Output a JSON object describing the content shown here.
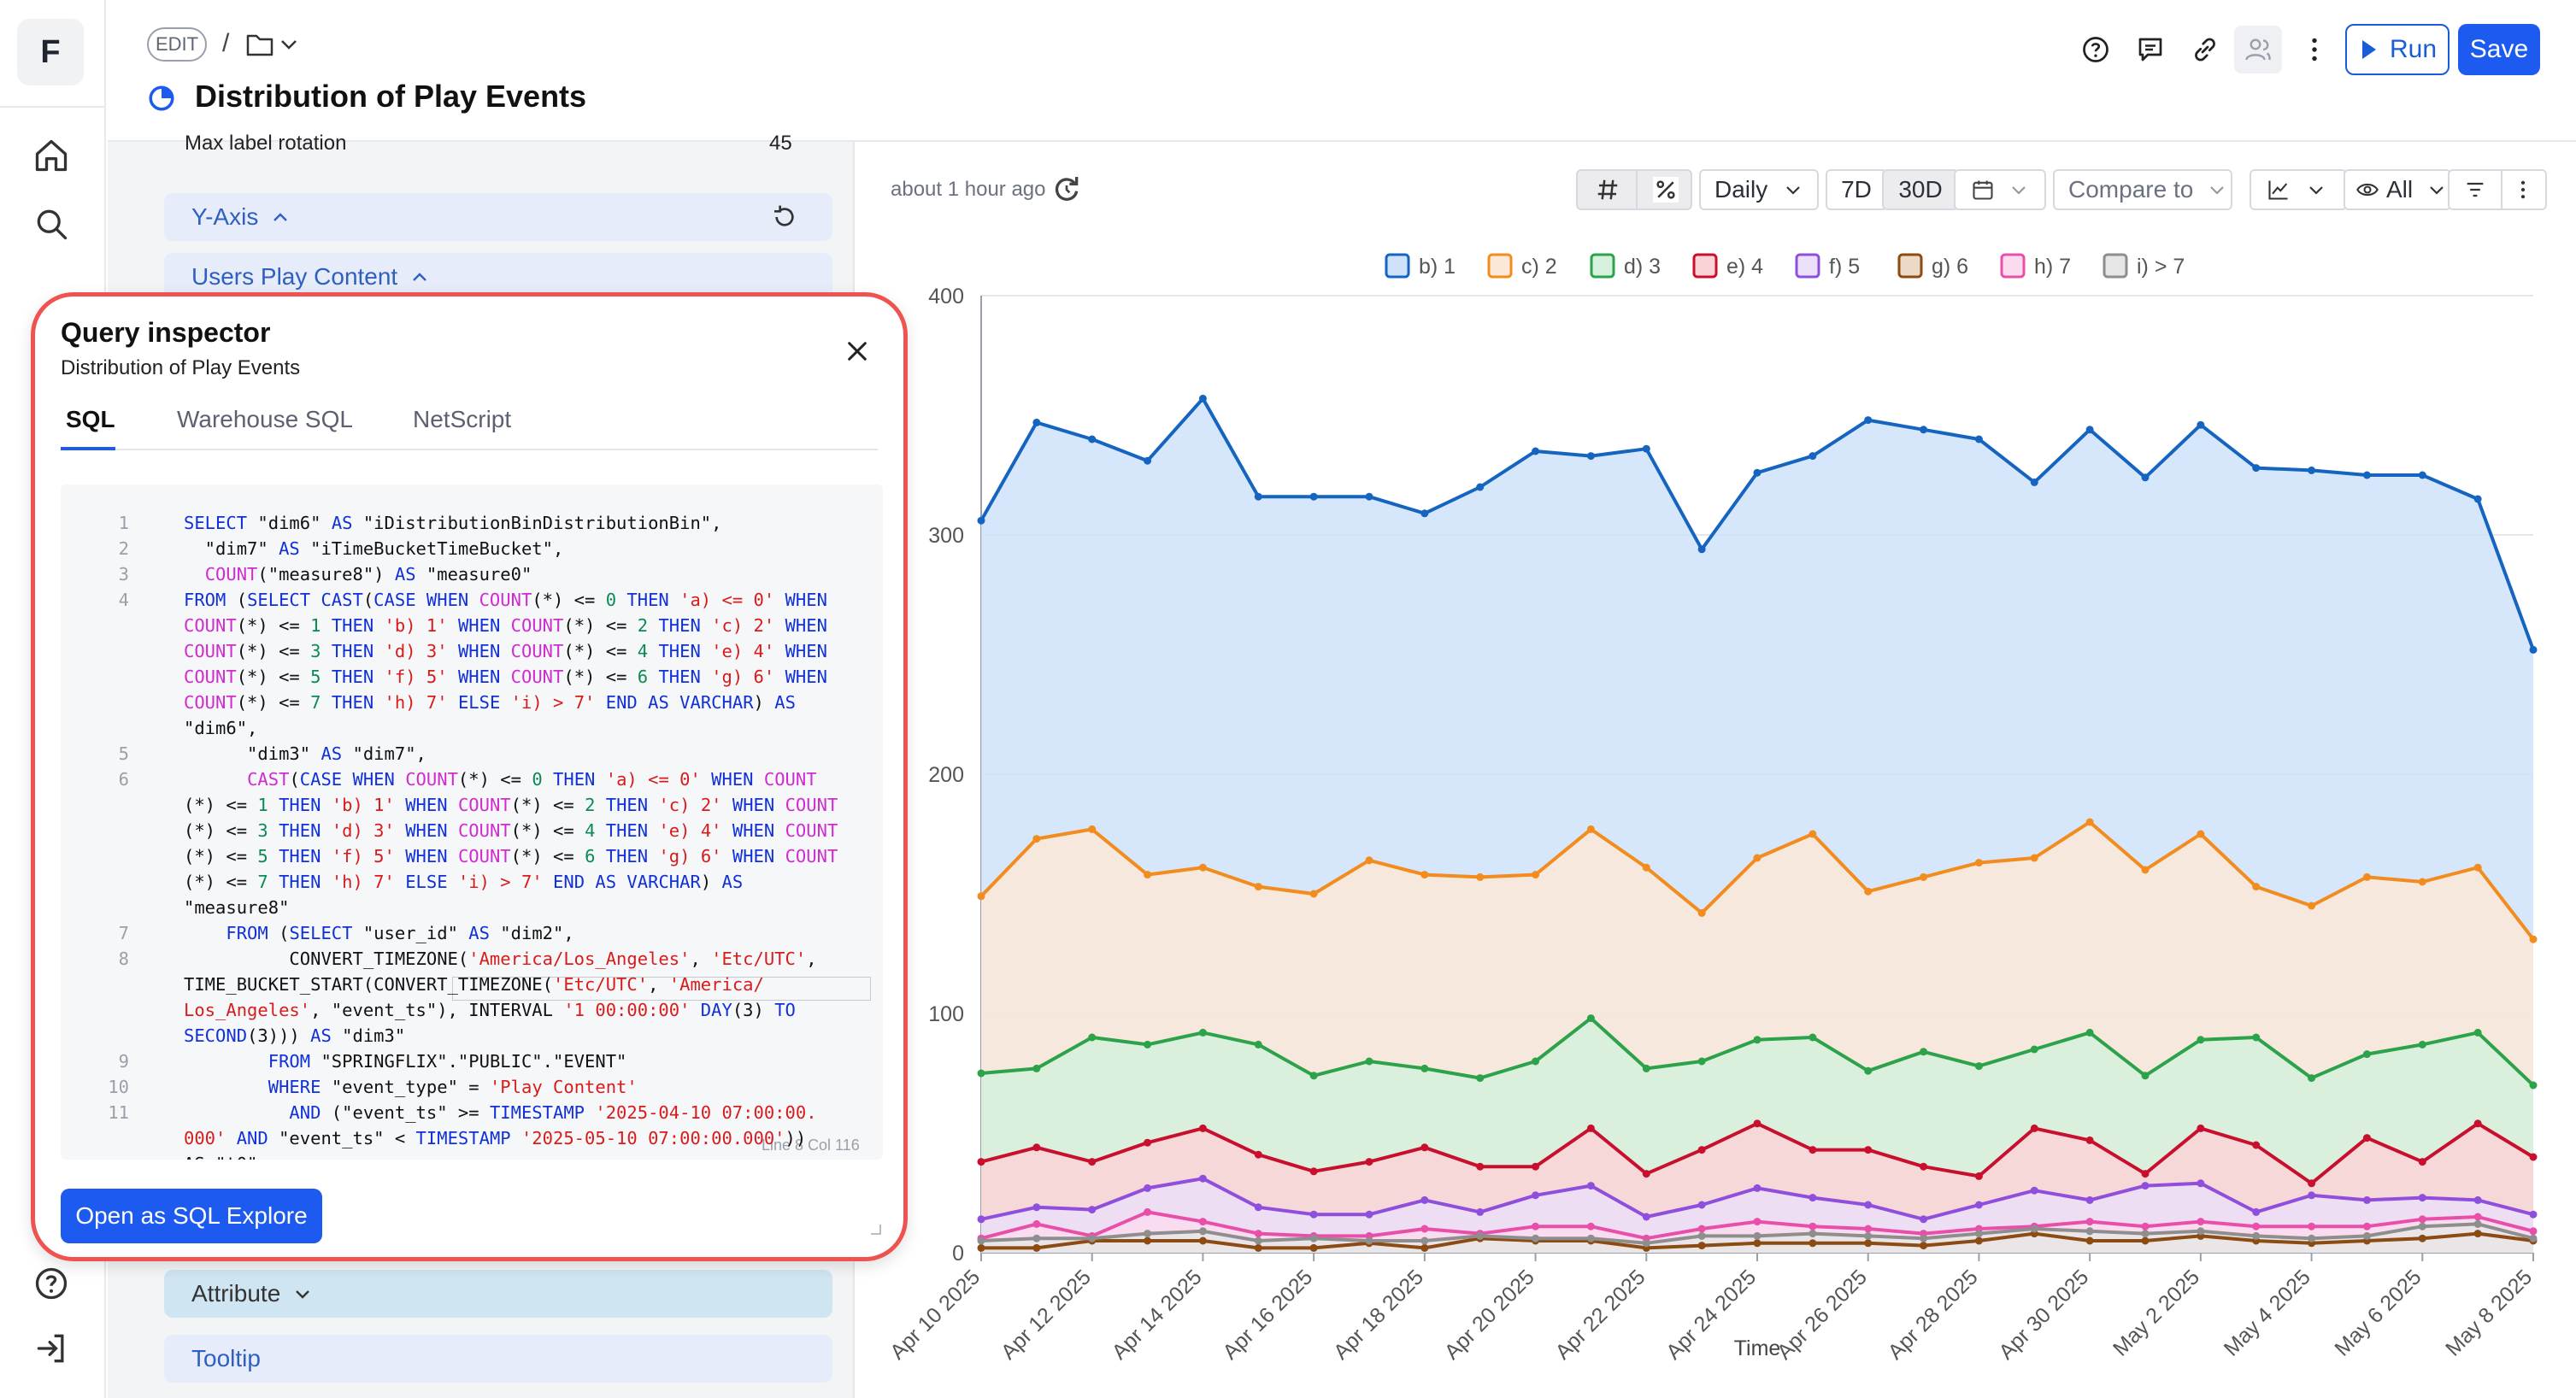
{
  "app": {
    "logo_letter": "F"
  },
  "header": {
    "edit_label": "EDIT",
    "separator": "/",
    "title": "Distribution of Play Events",
    "run_label": "Run",
    "save_label": "Save"
  },
  "left_panel": {
    "max_label_rotation_label": "Max label rotation",
    "max_label_rotation_value": "45",
    "y_axis_label": "Y-Axis",
    "users_play_content_label": "Users Play Content",
    "attribute_label": "Attribute",
    "tooltip_label": "Tooltip"
  },
  "toolbar": {
    "updated_text": "about 1 hour ago",
    "granularity": "Daily",
    "range_7d": "7D",
    "range_30d": "30D",
    "compare_label": "Compare to",
    "visibility_label": "All"
  },
  "query_inspector": {
    "title": "Query inspector",
    "subtitle": "Distribution of Play Events",
    "tabs": [
      "SQL",
      "Warehouse SQL",
      "NetScript"
    ],
    "active_tab": "SQL",
    "cursor_position": "Line 8 Col 116",
    "open_button_label": "Open as SQL Explore",
    "code_lines": [
      {
        "n": "1",
        "s": [
          [
            "SELECT ",
            "kw"
          ],
          [
            "\"dim6\" ",
            ""
          ],
          [
            "AS ",
            "kw"
          ],
          [
            "\"iDistributionBinDistributionBin\",",
            ""
          ]
        ]
      },
      {
        "n": "2",
        "s": [
          [
            "  \"dim7\" ",
            ""
          ],
          [
            "AS ",
            "kw"
          ],
          [
            "\"iTimeBucketTimeBucket\",",
            ""
          ]
        ]
      },
      {
        "n": "3",
        "s": [
          [
            "  ",
            ""
          ],
          [
            "COUNT",
            "fn"
          ],
          [
            "(\"measure8\") ",
            ""
          ],
          [
            "AS ",
            "kw"
          ],
          [
            "\"measure0\"",
            ""
          ]
        ]
      },
      {
        "n": "4",
        "s": [
          [
            "FROM ",
            "kw"
          ],
          [
            "(",
            ""
          ],
          [
            "SELECT CAST",
            "kw"
          ],
          [
            "(",
            ""
          ],
          [
            "CASE WHEN ",
            "kw"
          ],
          [
            "COUNT",
            "fn"
          ],
          [
            "(*) <= ",
            ""
          ],
          [
            "0 ",
            "nu"
          ],
          [
            "THEN ",
            "kw"
          ],
          [
            "'a) <= 0' ",
            "st"
          ],
          [
            "WHEN",
            "kw"
          ]
        ]
      },
      {
        "n": "",
        "s": [
          [
            "COUNT",
            "fn"
          ],
          [
            "(*) <= ",
            ""
          ],
          [
            "1 ",
            "nu"
          ],
          [
            "THEN ",
            "kw"
          ],
          [
            "'b) 1' ",
            "st"
          ],
          [
            "WHEN ",
            "kw"
          ],
          [
            "COUNT",
            "fn"
          ],
          [
            "(*) <= ",
            ""
          ],
          [
            "2 ",
            "nu"
          ],
          [
            "THEN ",
            "kw"
          ],
          [
            "'c) 2' ",
            "st"
          ],
          [
            "WHEN",
            "kw"
          ]
        ]
      },
      {
        "n": "",
        "s": [
          [
            "COUNT",
            "fn"
          ],
          [
            "(*) <= ",
            ""
          ],
          [
            "3 ",
            "nu"
          ],
          [
            "THEN ",
            "kw"
          ],
          [
            "'d) 3' ",
            "st"
          ],
          [
            "WHEN ",
            "kw"
          ],
          [
            "COUNT",
            "fn"
          ],
          [
            "(*) <= ",
            ""
          ],
          [
            "4 ",
            "nu"
          ],
          [
            "THEN ",
            "kw"
          ],
          [
            "'e) 4' ",
            "st"
          ],
          [
            "WHEN",
            "kw"
          ]
        ]
      },
      {
        "n": "",
        "s": [
          [
            "COUNT",
            "fn"
          ],
          [
            "(*) <= ",
            ""
          ],
          [
            "5 ",
            "nu"
          ],
          [
            "THEN ",
            "kw"
          ],
          [
            "'f) 5' ",
            "st"
          ],
          [
            "WHEN ",
            "kw"
          ],
          [
            "COUNT",
            "fn"
          ],
          [
            "(*) <= ",
            ""
          ],
          [
            "6 ",
            "nu"
          ],
          [
            "THEN ",
            "kw"
          ],
          [
            "'g) 6' ",
            "st"
          ],
          [
            "WHEN",
            "kw"
          ]
        ]
      },
      {
        "n": "",
        "s": [
          [
            "COUNT",
            "fn"
          ],
          [
            "(*) <= ",
            ""
          ],
          [
            "7 ",
            "nu"
          ],
          [
            "THEN ",
            "kw"
          ],
          [
            "'h) 7' ",
            "st"
          ],
          [
            "ELSE ",
            "kw"
          ],
          [
            "'i) > 7' ",
            "st"
          ],
          [
            "END AS VARCHAR",
            "kw"
          ],
          [
            ") ",
            ""
          ],
          [
            "AS",
            "kw"
          ]
        ]
      },
      {
        "n": "",
        "s": [
          [
            "\"dim6\",",
            ""
          ]
        ]
      },
      {
        "n": "5",
        "s": [
          [
            "      \"dim3\" ",
            ""
          ],
          [
            "AS ",
            "kw"
          ],
          [
            "\"dim7\",",
            ""
          ]
        ]
      },
      {
        "n": "6",
        "s": [
          [
            "      ",
            ""
          ],
          [
            "CAST",
            "fn"
          ],
          [
            "(",
            ""
          ],
          [
            "CASE WHEN ",
            "kw"
          ],
          [
            "COUNT",
            "fn"
          ],
          [
            "(*) <= ",
            ""
          ],
          [
            "0 ",
            "nu"
          ],
          [
            "THEN ",
            "kw"
          ],
          [
            "'a) <= 0' ",
            "st"
          ],
          [
            "WHEN ",
            "kw"
          ],
          [
            "COUNT",
            "fn"
          ]
        ]
      },
      {
        "n": "",
        "s": [
          [
            "(*) <= ",
            ""
          ],
          [
            "1 ",
            "nu"
          ],
          [
            "THEN ",
            "kw"
          ],
          [
            "'b) 1' ",
            "st"
          ],
          [
            "WHEN ",
            "kw"
          ],
          [
            "COUNT",
            "fn"
          ],
          [
            "(*) <= ",
            ""
          ],
          [
            "2 ",
            "nu"
          ],
          [
            "THEN ",
            "kw"
          ],
          [
            "'c) 2' ",
            "st"
          ],
          [
            "WHEN ",
            "kw"
          ],
          [
            "COUNT",
            "fn"
          ]
        ]
      },
      {
        "n": "",
        "s": [
          [
            "(*) <= ",
            ""
          ],
          [
            "3 ",
            "nu"
          ],
          [
            "THEN ",
            "kw"
          ],
          [
            "'d) 3' ",
            "st"
          ],
          [
            "WHEN ",
            "kw"
          ],
          [
            "COUNT",
            "fn"
          ],
          [
            "(*) <= ",
            ""
          ],
          [
            "4 ",
            "nu"
          ],
          [
            "THEN ",
            "kw"
          ],
          [
            "'e) 4' ",
            "st"
          ],
          [
            "WHEN ",
            "kw"
          ],
          [
            "COUNT",
            "fn"
          ]
        ]
      },
      {
        "n": "",
        "s": [
          [
            "(*) <= ",
            ""
          ],
          [
            "5 ",
            "nu"
          ],
          [
            "THEN ",
            "kw"
          ],
          [
            "'f) 5' ",
            "st"
          ],
          [
            "WHEN ",
            "kw"
          ],
          [
            "COUNT",
            "fn"
          ],
          [
            "(*) <= ",
            ""
          ],
          [
            "6 ",
            "nu"
          ],
          [
            "THEN ",
            "kw"
          ],
          [
            "'g) 6' ",
            "st"
          ],
          [
            "WHEN ",
            "kw"
          ],
          [
            "COUNT",
            "fn"
          ]
        ]
      },
      {
        "n": "",
        "s": [
          [
            "(*) <= ",
            ""
          ],
          [
            "7 ",
            "nu"
          ],
          [
            "THEN ",
            "kw"
          ],
          [
            "'h) 7' ",
            "st"
          ],
          [
            "ELSE ",
            "kw"
          ],
          [
            "'i) > 7' ",
            "st"
          ],
          [
            "END AS VARCHAR",
            "kw"
          ],
          [
            ") ",
            ""
          ],
          [
            "AS",
            "kw"
          ]
        ]
      },
      {
        "n": "",
        "s": [
          [
            "\"measure8\"",
            ""
          ]
        ]
      },
      {
        "n": "7",
        "s": [
          [
            "    ",
            ""
          ],
          [
            "FROM ",
            "kw"
          ],
          [
            "(",
            ""
          ],
          [
            "SELECT ",
            "kw"
          ],
          [
            "\"user_id\" ",
            ""
          ],
          [
            "AS ",
            "kw"
          ],
          [
            "\"dim2\",",
            ""
          ]
        ]
      },
      {
        "n": "8",
        "s": [
          [
            "          CONVERT_TIMEZONE(",
            ""
          ],
          [
            "'America/Los_Angeles'",
            "st"
          ],
          [
            ", ",
            ""
          ],
          [
            "'Etc/UTC'",
            "st"
          ],
          [
            ",",
            ""
          ]
        ]
      },
      {
        "n": "",
        "s": [
          [
            "TIME_BUCKET_START(CONVERT_TIMEZONE(",
            ""
          ],
          [
            "'Etc/UTC'",
            "st"
          ],
          [
            ", ",
            ""
          ],
          [
            "'America/",
            "st"
          ]
        ]
      },
      {
        "n": "",
        "s": [
          [
            "Los_Angeles'",
            "st"
          ],
          [
            ", \"event_ts\"), INTERVAL ",
            ""
          ],
          [
            "'1 00:00:00' ",
            "st"
          ],
          [
            "DAY",
            "kw"
          ],
          [
            "(3) ",
            ""
          ],
          [
            "TO",
            "kw"
          ]
        ]
      },
      {
        "n": "",
        "s": [
          [
            "SECOND",
            "kw"
          ],
          [
            "(3))) ",
            ""
          ],
          [
            "AS ",
            "kw"
          ],
          [
            "\"dim3\"",
            ""
          ]
        ]
      },
      {
        "n": "9",
        "s": [
          [
            "        ",
            ""
          ],
          [
            "FROM ",
            "kw"
          ],
          [
            "\"SPRINGFLIX\".\"PUBLIC\".\"EVENT\"",
            ""
          ]
        ]
      },
      {
        "n": "10",
        "s": [
          [
            "        ",
            ""
          ],
          [
            "WHERE ",
            "kw"
          ],
          [
            "\"event_type\" = ",
            ""
          ],
          [
            "'Play Content'",
            "st"
          ]
        ]
      },
      {
        "n": "11",
        "s": [
          [
            "          ",
            ""
          ],
          [
            "AND ",
            "kw"
          ],
          [
            "(\"event_ts\" >= ",
            ""
          ],
          [
            "TIMESTAMP ",
            "kw"
          ],
          [
            "'2025-04-10 07:00:00.",
            "st"
          ]
        ]
      },
      {
        "n": "",
        "s": [
          [
            "000' ",
            "st"
          ],
          [
            "AND ",
            "kw"
          ],
          [
            "\"event_ts\" < ",
            ""
          ],
          [
            "TIMESTAMP ",
            "kw"
          ],
          [
            "'2025-05-10 07:00:00.000'",
            "st"
          ],
          [
            "))",
            ""
          ]
        ]
      },
      {
        "n": "",
        "s": [
          [
            "AS \"t0\"",
            ""
          ]
        ]
      }
    ]
  },
  "chart_data": {
    "type": "area",
    "stacked": false,
    "title": "",
    "xlabel": "Time",
    "ylabel": "",
    "ylim": [
      0,
      400
    ],
    "yticks": [
      0,
      100,
      200,
      300,
      400
    ],
    "grid": true,
    "legend_position": "top",
    "x": [
      "Apr 10 2025",
      "Apr 11 2025",
      "Apr 12 2025",
      "Apr 13 2025",
      "Apr 14 2025",
      "Apr 15 2025",
      "Apr 16 2025",
      "Apr 17 2025",
      "Apr 18 2025",
      "Apr 19 2025",
      "Apr 20 2025",
      "Apr 21 2025",
      "Apr 22 2025",
      "Apr 23 2025",
      "Apr 24 2025",
      "Apr 25 2025",
      "Apr 26 2025",
      "Apr 27 2025",
      "Apr 28 2025",
      "Apr 29 2025",
      "Apr 30 2025",
      "May 1 2025",
      "May 2 2025",
      "May 3 2025",
      "May 4 2025",
      "May 5 2025",
      "May 6 2025",
      "May 7 2025",
      "May 8 2025"
    ],
    "xtick_labels": [
      "Apr 10 2025",
      "Apr 12 2025",
      "Apr 14 2025",
      "Apr 16 2025",
      "Apr 18 2025",
      "Apr 20 2025",
      "Apr 22 2025",
      "Apr 24 2025",
      "Apr 26 2025",
      "Apr 28 2025",
      "Apr 30 2025",
      "May 2 2025",
      "May 4 2025",
      "May 6 2025",
      "May 8 2025"
    ],
    "series": [
      {
        "name": "b) 1",
        "color": "#1565c0",
        "fill": "#cfe2fa",
        "values": [
          306,
          347,
          340,
          331,
          357,
          316,
          316,
          316,
          309,
          320,
          335,
          333,
          336,
          294,
          326,
          333,
          348,
          344,
          340,
          322,
          344,
          324,
          346,
          328,
          327,
          325,
          325,
          315,
          252
        ]
      },
      {
        "name": "c) 2",
        "color": "#f28c1e",
        "fill": "#fbe8d6",
        "values": [
          149,
          173,
          177,
          158,
          161,
          153,
          150,
          164,
          158,
          157,
          158,
          177,
          161,
          142,
          165,
          175,
          151,
          157,
          163,
          165,
          180,
          160,
          175,
          153,
          145,
          157,
          155,
          161,
          131
        ]
      },
      {
        "name": "d) 3",
        "color": "#2ca24a",
        "fill": "#d5f0dc",
        "values": [
          75,
          77,
          90,
          87,
          92,
          87,
          74,
          80,
          77,
          73,
          80,
          98,
          77,
          80,
          89,
          90,
          76,
          84,
          78,
          85,
          92,
          74,
          89,
          90,
          73,
          83,
          87,
          92,
          70
        ]
      },
      {
        "name": "e) 4",
        "color": "#c8102e",
        "fill": "#f9d3d6",
        "values": [
          38,
          44,
          38,
          46,
          52,
          41,
          34,
          38,
          44,
          36,
          36,
          52,
          33,
          43,
          54,
          43,
          43,
          36,
          32,
          52,
          47,
          33,
          52,
          45,
          29,
          48,
          38,
          54,
          40
        ]
      },
      {
        "name": "f) 5",
        "color": "#8f4fdc",
        "fill": "#ecdff9",
        "values": [
          14,
          19,
          18,
          27,
          31,
          19,
          16,
          16,
          22,
          17,
          24,
          28,
          15,
          20,
          27,
          23,
          20,
          14,
          20,
          26,
          22,
          28,
          29,
          17,
          24,
          22,
          23,
          22,
          16
        ]
      },
      {
        "name": "g) 6",
        "color": "#8b4b13",
        "fill": "#ecd9c6",
        "values": [
          2,
          2,
          5,
          5,
          5,
          2,
          2,
          4,
          2,
          6,
          5,
          5,
          2,
          3,
          4,
          4,
          4,
          3,
          5,
          8,
          5,
          5,
          7,
          5,
          4,
          5,
          6,
          8,
          5
        ]
      },
      {
        "name": "h) 7",
        "color": "#e84fa8",
        "fill": "#fbdcee",
        "values": [
          6,
          12,
          7,
          17,
          13,
          8,
          7,
          7,
          10,
          8,
          11,
          11,
          6,
          10,
          13,
          11,
          10,
          8,
          10,
          11,
          13,
          11,
          13,
          11,
          11,
          11,
          14,
          15,
          9
        ]
      },
      {
        "name": "i) > 7",
        "color": "#8e8e8e",
        "fill": "#e6e6e6",
        "values": [
          5,
          6,
          6,
          8,
          9,
          5,
          6,
          5,
          5,
          7,
          6,
          6,
          4,
          7,
          7,
          8,
          7,
          6,
          8,
          10,
          9,
          8,
          9,
          7,
          6,
          7,
          11,
          12,
          6
        ]
      }
    ]
  }
}
